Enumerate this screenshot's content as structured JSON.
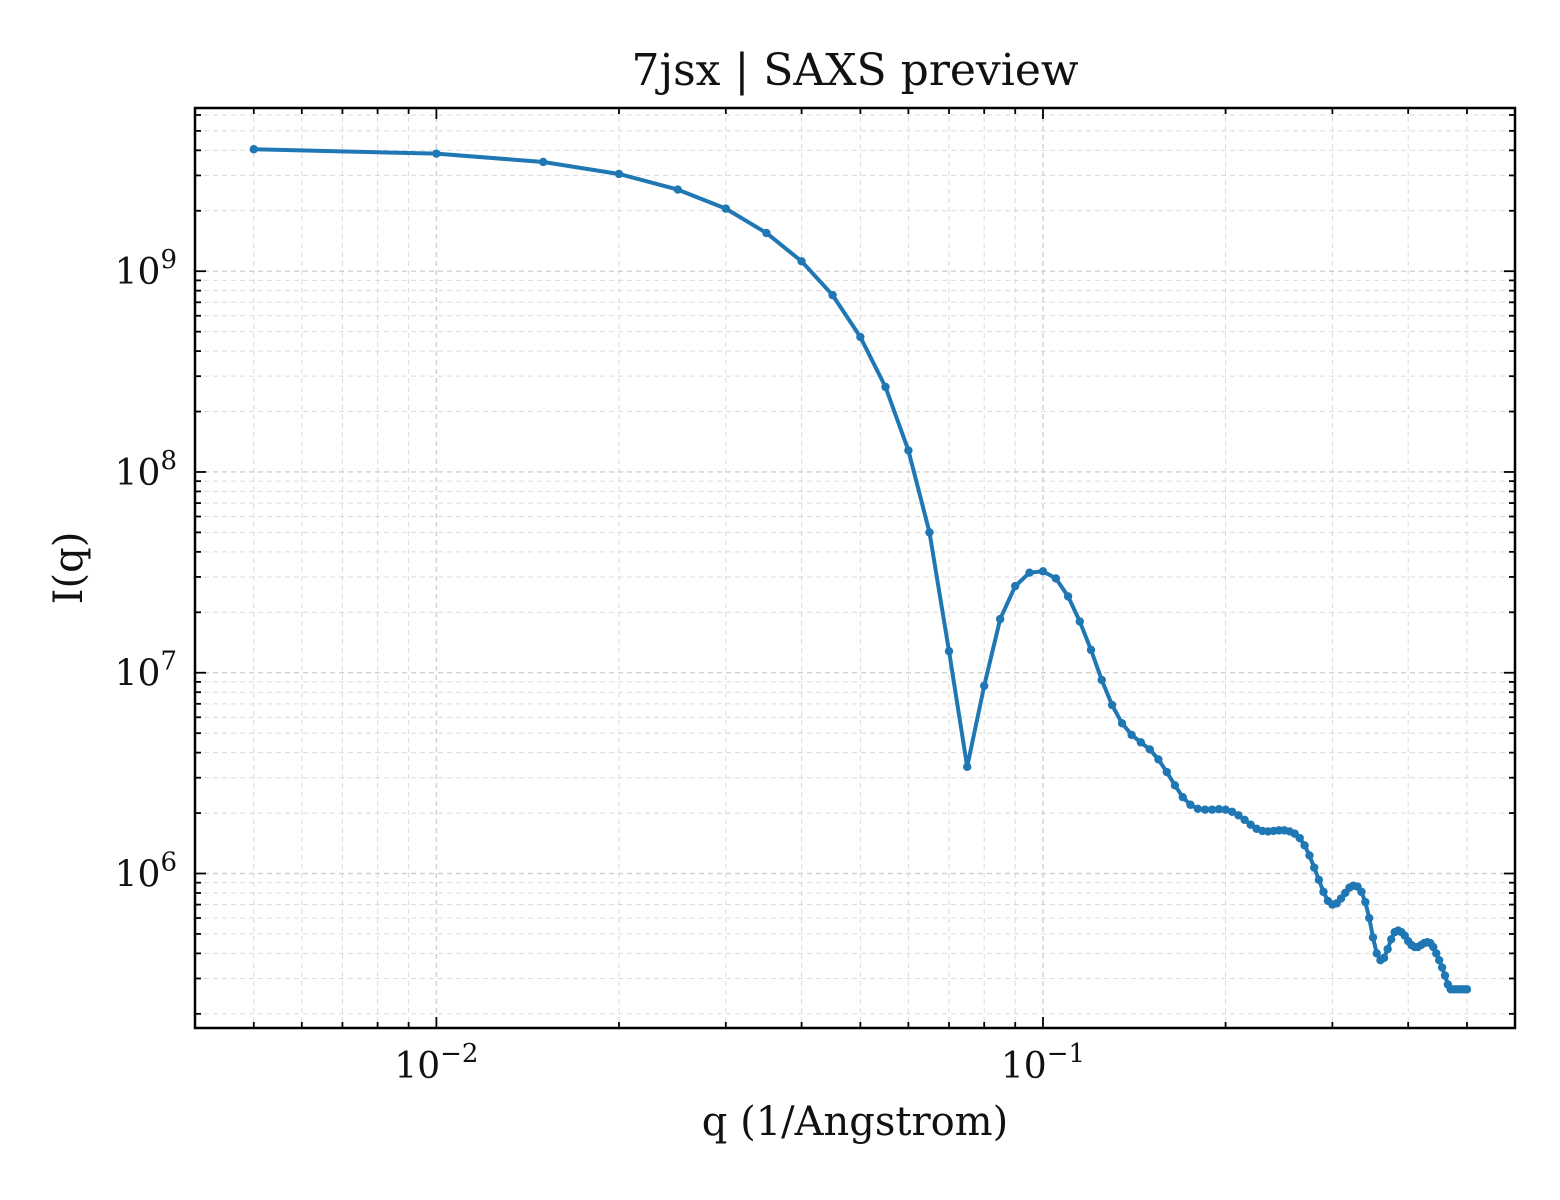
{
  "colors": {
    "series": "#1f77b4",
    "grid": "#cccccc",
    "axes": "#000000",
    "text": "#111111",
    "background": "#ffffff"
  },
  "chart_data": {
    "type": "line",
    "title": "7jsx | SAXS preview",
    "xlabel": "q (1/Angstrom)",
    "ylabel": "I(q)",
    "xscale": "log",
    "yscale": "log",
    "xlim": [
      0.004,
      0.6
    ],
    "ylim": [
      170000,
      6500000000
    ],
    "grid": true,
    "grid_style": "dashed, major and minor",
    "markers": true,
    "x_ticks": [
      {
        "value": 0.01,
        "base": "10",
        "exp": "−2"
      },
      {
        "value": 0.1,
        "base": "10",
        "exp": "−1"
      }
    ],
    "y_ticks": [
      {
        "value": 1000000,
        "base": "10",
        "exp": "6"
      },
      {
        "value": 10000000,
        "base": "10",
        "exp": "7"
      },
      {
        "value": 100000000,
        "base": "10",
        "exp": "8"
      },
      {
        "value": 1000000000,
        "base": "10",
        "exp": "9"
      }
    ],
    "series": [
      {
        "x": [
          0.005,
          0.01,
          0.015,
          0.02,
          0.025,
          0.03,
          0.035,
          0.04,
          0.045,
          0.05,
          0.055,
          0.06,
          0.065,
          0.07,
          0.075,
          0.08,
          0.085,
          0.09,
          0.095,
          0.1,
          0.105,
          0.11,
          0.115,
          0.12,
          0.125,
          0.13,
          0.135,
          0.14,
          0.145,
          0.15,
          0.155,
          0.16,
          0.165,
          0.17,
          0.175,
          0.18,
          0.185,
          0.19,
          0.195,
          0.2,
          0.205,
          0.21,
          0.215,
          0.22,
          0.225,
          0.23,
          0.235,
          0.24,
          0.245,
          0.25,
          0.255,
          0.26,
          0.265,
          0.27,
          0.275,
          0.28,
          0.285,
          0.29,
          0.295,
          0.3,
          0.305,
          0.31,
          0.315,
          0.32,
          0.325,
          0.33,
          0.335,
          0.34,
          0.345,
          0.35,
          0.355,
          0.36,
          0.365,
          0.37,
          0.375,
          0.38,
          0.385,
          0.39,
          0.395,
          0.4,
          0.405,
          0.41,
          0.415,
          0.42,
          0.425,
          0.43,
          0.435,
          0.44,
          0.445,
          0.45,
          0.455,
          0.46,
          0.465,
          0.47,
          0.475,
          0.48,
          0.485,
          0.49,
          0.495,
          0.5
        ],
        "y": [
          4050000000,
          3850000000,
          3500000000,
          3050000000,
          2550000000,
          2050000000,
          1550000000,
          1120000000,
          760000000,
          470000000,
          265000000,
          128000000,
          50000000,
          12800000,
          3400000,
          8600000,
          18500000,
          27000000,
          31500000,
          32000000,
          29500000,
          24000000,
          18000000,
          13000000,
          9200000,
          6900000,
          5600000,
          4900000,
          4500000,
          4150000,
          3700000,
          3200000,
          2750000,
          2400000,
          2200000,
          2100000,
          2080000,
          2080000,
          2090000,
          2080000,
          2030000,
          1950000,
          1850000,
          1750000,
          1670000,
          1630000,
          1620000,
          1630000,
          1640000,
          1640000,
          1620000,
          1580000,
          1500000,
          1380000,
          1230000,
          1070000,
          930000,
          810000,
          730000,
          700000,
          710000,
          750000,
          800000,
          850000,
          870000,
          860000,
          810000,
          720000,
          600000,
          480000,
          400000,
          370000,
          380000,
          420000,
          470000,
          510000,
          520000,
          510000,
          490000,
          460000,
          440000,
          430000,
          430000,
          440000,
          450000,
          455000,
          450000,
          430000,
          400000,
          370000,
          340000,
          310000,
          280000,
          265000,
          265000,
          265000,
          265000,
          265000,
          265000,
          265000
        ]
      }
    ]
  }
}
